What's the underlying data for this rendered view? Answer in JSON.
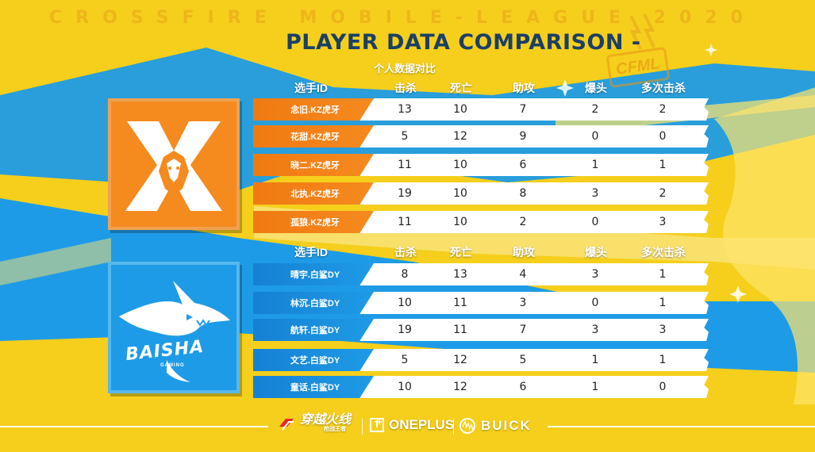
{
  "header": {
    "league_text": "CROSSFIRE MOBILE-LEAGUE 2020",
    "title": "PLAYER DATA COMPARISON -",
    "subtitle": "个人数据对比",
    "badge": "CFML"
  },
  "columns": [
    "选手ID",
    "击杀",
    "死亡",
    "助攻",
    "爆头",
    "多次击杀"
  ],
  "teams": [
    {
      "name": "KZ虎牙",
      "color": "#f58a1f",
      "players": [
        {
          "id": "念旧.KZ虎牙",
          "kills": "13",
          "deaths": "10",
          "assists": "7",
          "headshots": "2",
          "multikills": "2"
        },
        {
          "id": "花甜.KZ虎牙",
          "kills": "5",
          "deaths": "12",
          "assists": "9",
          "headshots": "0",
          "multikills": "0"
        },
        {
          "id": "晓二.KZ虎牙",
          "kills": "11",
          "deaths": "10",
          "assists": "6",
          "headshots": "1",
          "multikills": "1"
        },
        {
          "id": "北执.KZ虎牙",
          "kills": "19",
          "deaths": "10",
          "assists": "8",
          "headshots": "3",
          "multikills": "2"
        },
        {
          "id": "孤狼.KZ虎牙",
          "kills": "11",
          "deaths": "10",
          "assists": "2",
          "headshots": "0",
          "multikills": "3"
        }
      ]
    },
    {
      "name": "白鲨DY",
      "logo_text": "BAISHA",
      "logo_sub": "GAMING",
      "color": "#1e9be6",
      "players": [
        {
          "id": "晴宇.白鲨DY",
          "kills": "8",
          "deaths": "13",
          "assists": "4",
          "headshots": "3",
          "multikills": "1"
        },
        {
          "id": "林沉.白鲨DY",
          "kills": "10",
          "deaths": "11",
          "assists": "3",
          "headshots": "0",
          "multikills": "1"
        },
        {
          "id": "航轩.白鲨DY",
          "kills": "19",
          "deaths": "11",
          "assists": "7",
          "headshots": "3",
          "multikills": "3"
        },
        {
          "id": "文艺.白鲨DY",
          "kills": "5",
          "deaths": "12",
          "assists": "5",
          "headshots": "1",
          "multikills": "1"
        },
        {
          "id": "童话.白鲨DY",
          "kills": "10",
          "deaths": "12",
          "assists": "6",
          "headshots": "1",
          "multikills": "0"
        }
      ]
    }
  ],
  "sponsors": [
    {
      "name": "穿越火线",
      "sub": "枪战王者",
      "icon": "crossfire-logo-icon"
    },
    {
      "name": "ONEPLUS",
      "icon": "oneplus-logo-icon"
    },
    {
      "name": "BUICK",
      "icon": "buick-logo-icon"
    }
  ],
  "colors": {
    "background_yellow": "#f5cf1c",
    "brush_blue": "#1e9be6",
    "title_navy": "#1b3f66",
    "kz_orange": "#f58a1f"
  }
}
